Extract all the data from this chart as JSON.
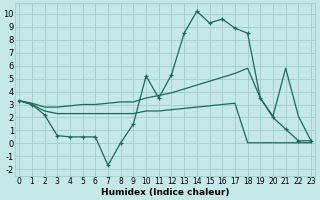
{
  "xlabel": "Humidex (Indice chaleur)",
  "background_color": "#c5e8e8",
  "grid_color": "#a8d0d0",
  "line_color": "#1a6b5a",
  "xlim": [
    -0.3,
    23.3
  ],
  "ylim": [
    -2.5,
    10.8
  ],
  "yticks": [
    -2,
    -1,
    0,
    1,
    2,
    3,
    4,
    5,
    6,
    7,
    8,
    9,
    10
  ],
  "xticks": [
    0,
    1,
    2,
    3,
    4,
    5,
    6,
    7,
    8,
    9,
    10,
    11,
    12,
    13,
    14,
    15,
    16,
    17,
    18,
    19,
    20,
    21,
    22,
    23
  ],
  "line1_x": [
    0,
    1,
    2,
    3,
    4,
    5,
    6,
    7,
    8,
    9,
    10,
    11,
    12,
    13,
    14,
    15,
    16,
    17,
    18,
    19,
    20,
    21,
    22,
    23
  ],
  "line1_y": [
    3.3,
    3.0,
    2.2,
    0.6,
    0.5,
    0.5,
    0.5,
    -1.7,
    0.05,
    1.5,
    5.2,
    3.5,
    5.3,
    8.5,
    10.2,
    9.3,
    9.6,
    8.9,
    8.5,
    3.5,
    2.0,
    1.1,
    0.2,
    0.2
  ],
  "line2_x": [
    0,
    1,
    2,
    3,
    4,
    5,
    6,
    7,
    8,
    9,
    10,
    11,
    12,
    13,
    14,
    15,
    16,
    17,
    18,
    19,
    20,
    21,
    22,
    23
  ],
  "line2_y": [
    3.3,
    3.1,
    2.8,
    2.8,
    2.9,
    3.0,
    3.0,
    3.1,
    3.2,
    3.2,
    3.5,
    3.7,
    3.9,
    4.2,
    4.5,
    4.8,
    5.1,
    5.4,
    5.8,
    3.5,
    2.1,
    5.8,
    2.1,
    0.2
  ],
  "line3_x": [
    0,
    1,
    2,
    3,
    4,
    5,
    6,
    7,
    8,
    9,
    10,
    11,
    12,
    13,
    14,
    15,
    16,
    17,
    18,
    19,
    20,
    21,
    22,
    23
  ],
  "line3_y": [
    3.3,
    3.0,
    2.5,
    2.3,
    2.3,
    2.3,
    2.3,
    2.3,
    2.3,
    2.3,
    2.5,
    2.5,
    2.6,
    2.7,
    2.8,
    2.9,
    3.0,
    3.1,
    0.05,
    0.05,
    0.05,
    0.05,
    0.05,
    0.05
  ]
}
